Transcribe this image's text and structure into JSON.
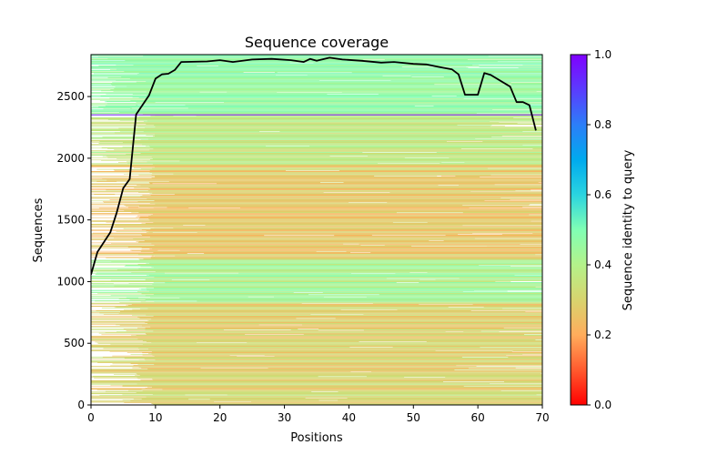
{
  "chart_data": {
    "type": "heatmap",
    "title": "Sequence coverage",
    "xlabel": "Positions",
    "ylabel": "Sequences",
    "xlim": [
      0,
      70
    ],
    "ylim": [
      0,
      2840
    ],
    "xticks": [
      0,
      10,
      20,
      30,
      40,
      50,
      60,
      70
    ],
    "yticks": [
      0,
      500,
      1000,
      1500,
      2000,
      2500
    ],
    "xtick_labels": [
      "0",
      "10",
      "20",
      "30",
      "40",
      "50",
      "60",
      "70"
    ],
    "ytick_labels": [
      "0",
      "500",
      "1000",
      "1500",
      "2000",
      "2500"
    ],
    "grid": false,
    "colorbar": {
      "label": "Sequence identity to query",
      "range": [
        0,
        1
      ],
      "colormap": "rainbow_r",
      "ticks": [
        0.0,
        0.2,
        0.4,
        0.6,
        0.8,
        1.0
      ],
      "tick_labels": [
        "0.0",
        "0.2",
        "0.4",
        "0.6",
        "0.8",
        "1.0"
      ],
      "stops": [
        "#ff0000",
        "#ff5a2e",
        "#ffad5c",
        "#d8d46e",
        "#b4f28a",
        "#80ffb4",
        "#2ad4e0",
        "#00aaee",
        "#2c7ef8",
        "#5a3cfe",
        "#8000ff"
      ]
    },
    "identity_bands": [
      {
        "seq_from": 0,
        "seq_to": 830,
        "identity_min": 0.22,
        "identity_max": 0.38
      },
      {
        "seq_from": 830,
        "seq_to": 1180,
        "identity_min": 0.34,
        "identity_max": 0.5
      },
      {
        "seq_from": 1180,
        "seq_to": 1950,
        "identity_min": 0.2,
        "identity_max": 0.34
      },
      {
        "seq_from": 1950,
        "seq_to": 2360,
        "identity_min": 0.3,
        "identity_max": 0.44
      },
      {
        "seq_from": 2360,
        "seq_to": 2840,
        "identity_min": 0.4,
        "identity_max": 0.52
      }
    ],
    "query_row": {
      "seq": 2355,
      "identity": 0.95
    },
    "series": [
      {
        "name": "coverage",
        "color": "#000000",
        "x": [
          0,
          1,
          3,
          4,
          5,
          6,
          7,
          9,
          10,
          11,
          12,
          13,
          14,
          18,
          20,
          22,
          25,
          28,
          31,
          33,
          34,
          35,
          37,
          39,
          42,
          45,
          47,
          50,
          52,
          54,
          56,
          57,
          58,
          60,
          61,
          62,
          65,
          66,
          67,
          68,
          69
        ],
        "y": [
          1057,
          1240,
          1400,
          1560,
          1757,
          1830,
          2355,
          2510,
          2645,
          2680,
          2685,
          2715,
          2780,
          2785,
          2795,
          2780,
          2800,
          2805,
          2795,
          2780,
          2805,
          2790,
          2815,
          2800,
          2790,
          2775,
          2780,
          2765,
          2760,
          2740,
          2720,
          2680,
          2515,
          2515,
          2690,
          2675,
          2580,
          2455,
          2455,
          2430,
          2225
        ]
      }
    ]
  }
}
